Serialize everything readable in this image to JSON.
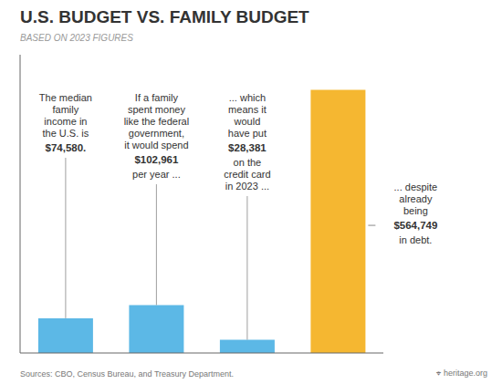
{
  "chart_data": {
    "type": "bar",
    "title": "U.S. BUDGET VS. FAMILY BUDGET",
    "subtitle": "BASED ON 2023 FIGURES",
    "categories": [
      null,
      null,
      null,
      null
    ],
    "values": [
      74580,
      102961,
      28381,
      564749
    ],
    "colors": [
      "#5cb8e6",
      "#5cb8e6",
      "#5cb8e6",
      "#f5b731"
    ],
    "ylim": [
      0,
      640000
    ],
    "tick_labels": false,
    "annotations": [
      [
        "The median\nfamily\nincome in\nthe U.S. is",
        "$74,580."
      ],
      [
        "If a family\nspent money\nlike the federal\ngovernment,\nit would spend",
        "$102,961",
        "per year ..."
      ],
      [
        "... which\nmeans it\nwould\nhave put",
        "$28,381",
        "on the\ncredit card\nin 2023 ..."
      ],
      [
        "... despite\nalready\nbeing",
        "$564,749",
        "in debt."
      ]
    ],
    "source": "Sources: CBO, Census Bureau, and Treasury Department.",
    "credit": "⌖ heritage.org"
  }
}
